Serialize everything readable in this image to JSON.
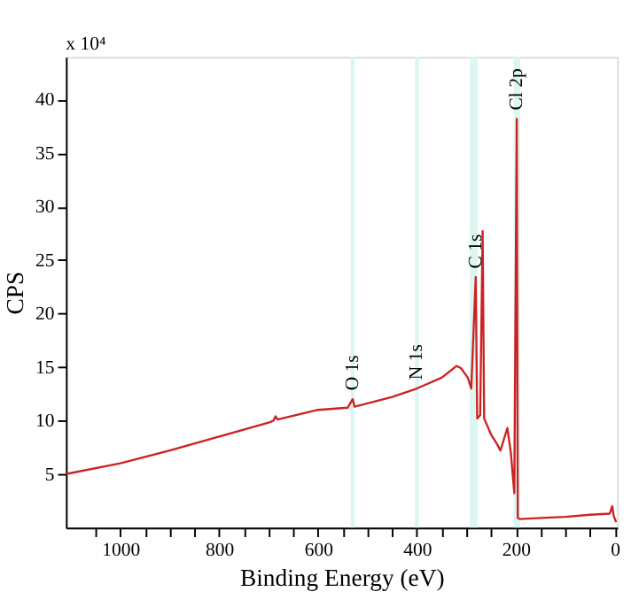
{
  "chart_data": {
    "type": "line",
    "xlabel": "Binding Energy (eV)",
    "ylabel": "CPS",
    "x": [
      1110,
      1000,
      900,
      800,
      700,
      690,
      686,
      682,
      600,
      540,
      530,
      526,
      450,
      400,
      350,
      320,
      311,
      297,
      290,
      281,
      278,
      272,
      267,
      264,
      250,
      238,
      231,
      217,
      210,
      203,
      198,
      196,
      192,
      150,
      100,
      50,
      10,
      5,
      2,
      -3
    ],
    "series": [
      {
        "color": "#cc2222",
        "values": [
          5.0,
          6.0,
          7.2,
          8.5,
          9.8,
          10.0,
          10.4,
          10.1,
          11.0,
          11.2,
          12.0,
          11.3,
          12.2,
          13.0,
          14.0,
          15.1,
          14.9,
          14.0,
          13.0,
          23.4,
          10.2,
          10.5,
          27.7,
          10.2,
          8.7,
          7.8,
          7.2,
          9.3,
          7.0,
          3.2,
          38.2,
          0.9,
          0.8,
          0.9,
          1.0,
          1.2,
          1.3,
          2.0,
          1.1,
          0.5
        ]
      }
    ],
    "xlim": [
      1110,
      -5
    ],
    "ylim": [
      0,
      44
    ],
    "xticks": [
      1000,
      {
        "value": 950,
        "label": null
      },
      800,
      {
        "value": 900,
        "label": null
      },
      {
        "value": 850,
        "label": null
      },
      {
        "value": 750,
        "label": null
      },
      600,
      {
        "value": 700,
        "label": null
      },
      {
        "value": 650,
        "label": null
      },
      {
        "value": 550,
        "label": null
      },
      400,
      {
        "value": 500,
        "label": null
      },
      {
        "value": 450,
        "label": null
      },
      {
        "value": 350,
        "label": null
      },
      200,
      {
        "value": 300,
        "label": null
      },
      {
        "value": 250,
        "label": null
      },
      {
        "value": 150,
        "label": null
      },
      0,
      {
        "value": 100,
        "label": null
      },
      {
        "value": 50,
        "label": null
      },
      {
        "value": 1050,
        "label": null
      }
    ],
    "yticks": [
      5,
      10,
      15,
      20,
      25,
      30,
      35,
      40
    ],
    "bands": [
      {
        "axis": "x",
        "from": 526,
        "to": 534,
        "color": "#dcf6f2"
      },
      {
        "axis": "x",
        "from": 396,
        "to": 404,
        "color": "#dcf6f2"
      },
      {
        "axis": "x",
        "from": 277,
        "to": 293,
        "color": "#dcf6f2"
      },
      {
        "axis": "x",
        "from": 191,
        "to": 204,
        "color": "#dcf6f2"
      }
    ],
    "annotations": [
      "x 10⁴",
      {
        "text": "O 1s",
        "x": 530,
        "y": 12.0
      },
      {
        "text": "N 1s",
        "x": 400,
        "y": 13.0
      },
      {
        "text": "C 1s",
        "x": 281,
        "y": 23.4
      },
      {
        "text": "Cl 2p",
        "x": 198,
        "y": 38.2
      }
    ],
    "grid": false,
    "line_style": "solid",
    "marker": "none"
  }
}
